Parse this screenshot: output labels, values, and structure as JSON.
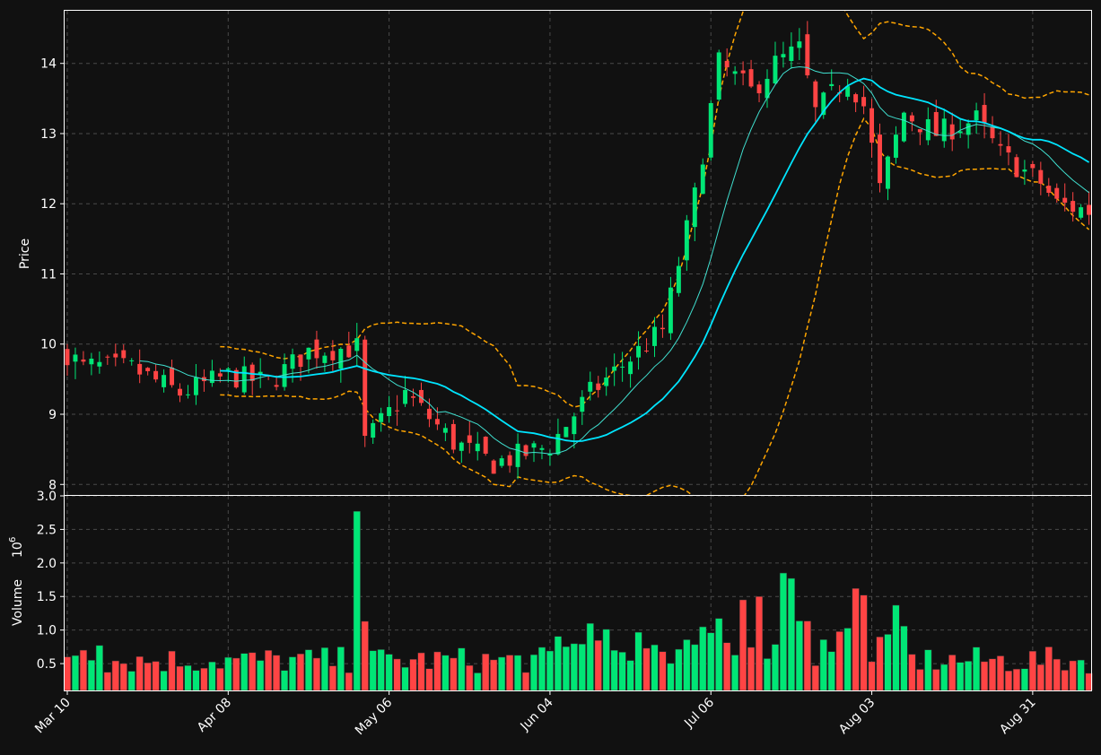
{
  "chart_data": {
    "type": "candlestick",
    "colors": {
      "background": "#111111",
      "up": "#00e676",
      "down": "#ff4444",
      "ma_fast": "#40e0d0",
      "ma_slow": "#00e5ff",
      "band": "#ffa500",
      "grid": "#4a4a4a",
      "text": "#ffffff"
    },
    "price_panel": {
      "ylabel": "Price",
      "ylim": [
        7.85,
        14.75
      ],
      "yticks": [
        8,
        9,
        10,
        11,
        12,
        13,
        14
      ]
    },
    "volume_panel": {
      "ylabel": "Volume",
      "ylabel_exponent": "10",
      "ylabel_exponent_power": "6",
      "ylim": [
        0.1,
        3.0
      ],
      "yticks": [
        "0.5",
        "1.0",
        "1.5",
        "2.0",
        "2.5",
        "3.0"
      ],
      "ytick_values": [
        0.5,
        1.0,
        1.5,
        2.0,
        2.5,
        3.0
      ]
    },
    "xtick_labels": [
      "Mar 10",
      "Apr 08",
      "May 06",
      "Jun 04",
      "Jul 06",
      "Aug 03",
      "Aug 31"
    ],
    "xtick_index": [
      0,
      20,
      40,
      60,
      80,
      100,
      120
    ],
    "grid": true,
    "bar_count": 128,
    "candles_sample_first": [
      {
        "o": 9.93,
        "h": 10.0,
        "l": 9.55,
        "c": 9.7
      },
      {
        "o": 9.75,
        "h": 9.95,
        "l": 9.5,
        "c": 9.85
      },
      {
        "o": 9.78,
        "h": 9.9,
        "l": 9.7,
        "c": 9.75
      }
    ],
    "volume_sample_first": [
      0.6,
      0.62,
      0.7,
      0.55,
      0.77
    ]
  },
  "ohlc_path": {
    "close_keypoints": [
      [
        0,
        9.7
      ],
      [
        8,
        9.65
      ],
      [
        14,
        9.3
      ],
      [
        20,
        9.55
      ],
      [
        25,
        9.45
      ],
      [
        30,
        9.9
      ],
      [
        36,
        9.95
      ],
      [
        37,
        8.6
      ],
      [
        42,
        9.3
      ],
      [
        48,
        8.6
      ],
      [
        53,
        8.3
      ],
      [
        60,
        8.55
      ],
      [
        65,
        9.3
      ],
      [
        70,
        9.8
      ],
      [
        74,
        10.2
      ],
      [
        78,
        12.1
      ],
      [
        81,
        14.0
      ],
      [
        85,
        13.6
      ],
      [
        88,
        14.0
      ],
      [
        91,
        14.2
      ],
      [
        93,
        13.3
      ],
      [
        97,
        13.8
      ],
      [
        99,
        13.4
      ],
      [
        101,
        12.2
      ],
      [
        104,
        13.3
      ],
      [
        108,
        13.0
      ],
      [
        113,
        13.2
      ],
      [
        116,
        12.7
      ],
      [
        121,
        12.3
      ],
      [
        123,
        12.0
      ],
      [
        127,
        11.9
      ]
    ],
    "volume_spikes": {
      "36": 2.77,
      "37": 1.13,
      "84": 1.45,
      "86": 1.5,
      "89": 1.85,
      "90": 1.77,
      "98": 1.62,
      "99": 1.52,
      "103": 1.37
    }
  }
}
